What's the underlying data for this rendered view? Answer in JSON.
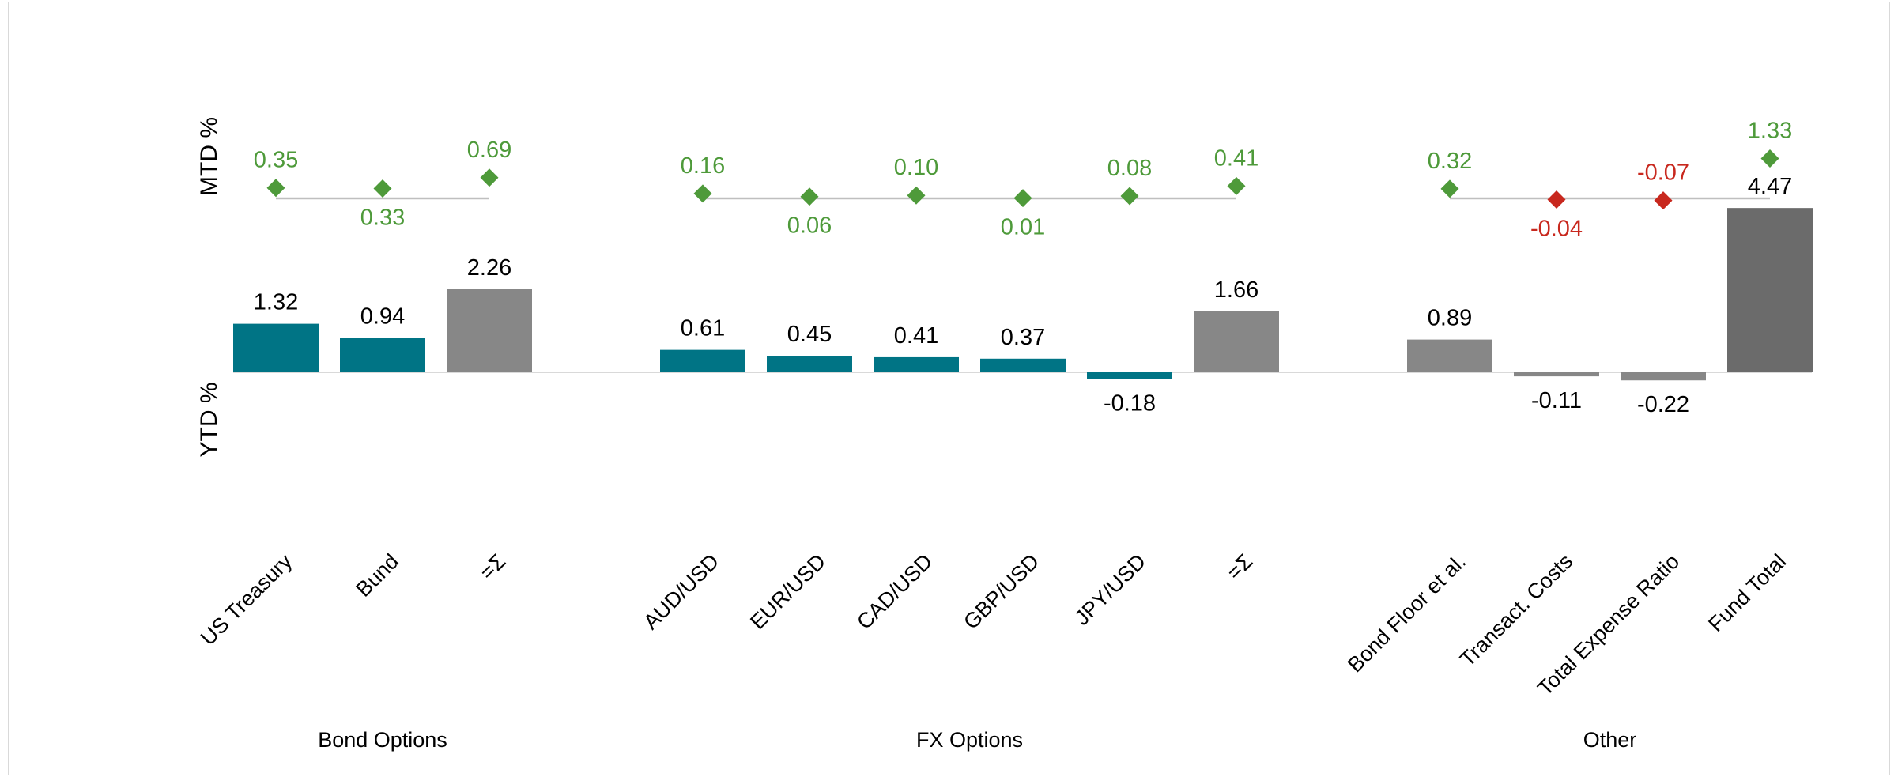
{
  "chart_data": {
    "type": "bar",
    "axis_titles": {
      "top": "MTD %",
      "bottom": "YTD %"
    },
    "colors": {
      "mtd_positive": "#4e9a3a",
      "mtd_negative": "#c8281e",
      "ytd_component": "#007485",
      "ytd_subtotal": "#878787",
      "ytd_total": "#6b6b6b",
      "connector": "#bfbfbf"
    },
    "groups": [
      {
        "name": "Bond Options",
        "items": [
          {
            "category": "US Treasury",
            "mtd": 0.35,
            "mtd_label": "0.35",
            "ytd": 1.32,
            "ytd_label": "1.32",
            "kind": "component"
          },
          {
            "category": "Bund",
            "mtd": 0.33,
            "mtd_label": "0.33",
            "ytd": 0.94,
            "ytd_label": "0.94",
            "kind": "component"
          },
          {
            "category": "=Σ",
            "mtd": 0.69,
            "mtd_label": "0.69",
            "ytd": 2.26,
            "ytd_label": "2.26",
            "kind": "subtotal"
          }
        ]
      },
      {
        "name": "FX Options",
        "items": [
          {
            "category": "AUD/USD",
            "mtd": 0.16,
            "mtd_label": "0.16",
            "ytd": 0.61,
            "ytd_label": "0.61",
            "kind": "component"
          },
          {
            "category": "EUR/USD",
            "mtd": 0.06,
            "mtd_label": "0.06",
            "ytd": 0.45,
            "ytd_label": "0.45",
            "kind": "component"
          },
          {
            "category": "CAD/USD",
            "mtd": 0.1,
            "mtd_label": "0.10",
            "ytd": 0.41,
            "ytd_label": "0.41",
            "kind": "component"
          },
          {
            "category": "GBP/USD",
            "mtd": 0.01,
            "mtd_label": "0.01",
            "ytd": 0.37,
            "ytd_label": "0.37",
            "kind": "component"
          },
          {
            "category": "JPY/USD",
            "mtd": 0.08,
            "mtd_label": "0.08",
            "ytd": -0.18,
            "ytd_label": "-0.18",
            "kind": "component"
          },
          {
            "category": "=Σ",
            "mtd": 0.41,
            "mtd_label": "0.41",
            "ytd": 1.66,
            "ytd_label": "1.66",
            "kind": "subtotal"
          }
        ]
      },
      {
        "name": "Other",
        "items": [
          {
            "category": "Bond Floor et al.",
            "mtd": 0.32,
            "mtd_label": "0.32",
            "ytd": 0.89,
            "ytd_label": "0.89",
            "kind": "subtotal"
          },
          {
            "category": "Transact. Costs",
            "mtd": -0.04,
            "mtd_label": "-0.04",
            "ytd": -0.11,
            "ytd_label": "-0.11",
            "kind": "subtotal"
          },
          {
            "category": "Total Expense Ratio",
            "mtd": -0.07,
            "mtd_label": "-0.07",
            "ytd": -0.22,
            "ytd_label": "-0.22",
            "kind": "subtotal"
          },
          {
            "category": "Fund Total",
            "mtd": 1.33,
            "mtd_label": "1.33",
            "ytd": 4.47,
            "ytd_label": "4.47",
            "kind": "total"
          }
        ]
      }
    ]
  }
}
